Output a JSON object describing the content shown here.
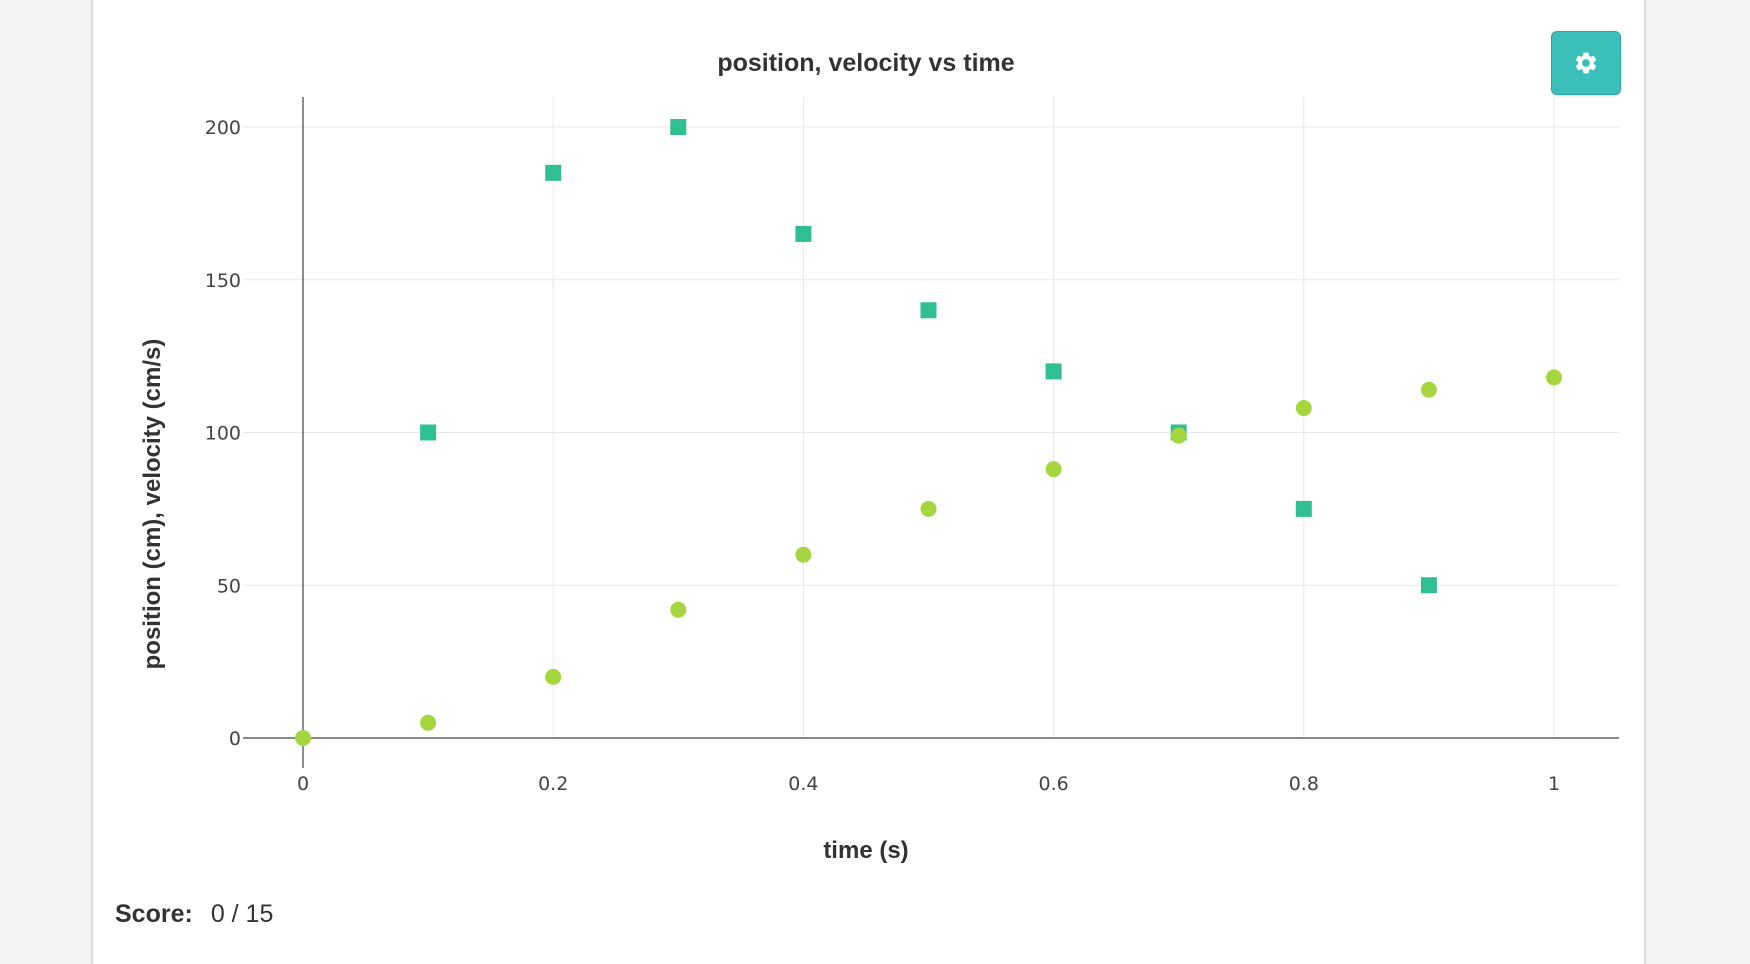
{
  "chart_data": {
    "type": "scatter",
    "title": "position, velocity vs time",
    "xlabel": "time (s)",
    "ylabel": "position (cm), velocity (cm/s)",
    "xlim": [
      0,
      1.05
    ],
    "ylim": [
      0,
      200
    ],
    "grid": true,
    "x_ticks": [
      0,
      0.2,
      0.4,
      0.6,
      0.8,
      1
    ],
    "x_tick_labels": [
      "0",
      "0.2",
      "0.4",
      "0.6",
      "0.8",
      "1"
    ],
    "y_ticks": [
      0,
      50,
      100,
      150,
      200
    ],
    "y_tick_labels": [
      "0",
      "50",
      "100",
      "150",
      "200"
    ],
    "series": [
      {
        "marker": "square",
        "color": "#2fbf93",
        "points": [
          {
            "x": 0.1,
            "y": 100
          },
          {
            "x": 0.2,
            "y": 185
          },
          {
            "x": 0.3,
            "y": 200
          },
          {
            "x": 0.4,
            "y": 165
          },
          {
            "x": 0.5,
            "y": 140
          },
          {
            "x": 0.6,
            "y": 120
          },
          {
            "x": 0.7,
            "y": 100
          },
          {
            "x": 0.8,
            "y": 75
          },
          {
            "x": 0.9,
            "y": 50
          }
        ]
      },
      {
        "marker": "circle",
        "color": "#a5d63f",
        "points": [
          {
            "x": 0,
            "y": 0
          },
          {
            "x": 0.1,
            "y": 5
          },
          {
            "x": 0.2,
            "y": 20
          },
          {
            "x": 0.3,
            "y": 42
          },
          {
            "x": 0.4,
            "y": 60
          },
          {
            "x": 0.5,
            "y": 75
          },
          {
            "x": 0.6,
            "y": 88
          },
          {
            "x": 0.7,
            "y": 99
          },
          {
            "x": 0.8,
            "y": 108
          },
          {
            "x": 0.9,
            "y": 114
          },
          {
            "x": 1,
            "y": 118
          }
        ]
      }
    ]
  },
  "settings": {
    "icon": "gear-icon",
    "color": "#3bbfbb"
  },
  "score": {
    "label": "Score:",
    "value": "0 / 15"
  }
}
